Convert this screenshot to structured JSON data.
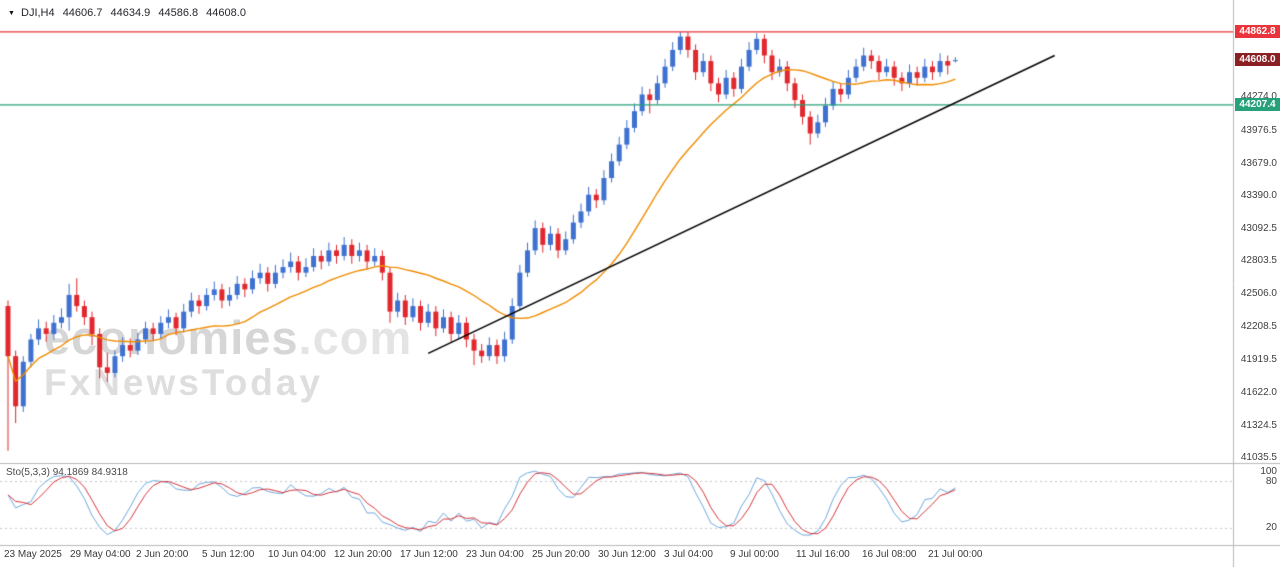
{
  "header": {
    "marker_icon": "▼",
    "symbol": "DJI,H4",
    "open": "44606.7",
    "high": "44634.9",
    "low": "44586.8",
    "close": "44608.0"
  },
  "watermark": {
    "brand": "economies",
    "domain": ".com",
    "subbrand": "FxNewsToday"
  },
  "price_axis": {
    "badges": {
      "resistance": "44862.8",
      "last": "44608.0",
      "support": "44207.4"
    }
  },
  "colors": {
    "up_candle": "#3f72d0",
    "down_candle": "#e0282e",
    "ma": "#f08c00",
    "trendline": "#000000",
    "resistance": "#e8343a",
    "support": "#27a17b",
    "last_price_badge": "#8a1f24",
    "stoch_k": "#6fa8dc",
    "stoch_d": "#d6373d",
    "level_line": "#c6c6c6",
    "border": "#b8b8b8"
  },
  "chart_data": {
    "type": "candlestick",
    "symbol": "DJI",
    "timeframe": "H4",
    "price_range": [
      41000,
      44870
    ],
    "y_tick_labels": [
      "44274.0",
      "43976.5",
      "43679.0",
      "43390.0",
      "43092.5",
      "42803.5",
      "42506.0",
      "42208.5",
      "41919.5",
      "41622.0",
      "41324.5",
      "41035.5"
    ],
    "x_tick_labels": [
      "23 May 2025",
      "29 May 04:00",
      "2 Jun 20:00",
      "5 Jun 12:00",
      "10 Jun 04:00",
      "12 Jun 20:00",
      "17 Jun 12:00",
      "23 Jun 04:00",
      "25 Jun 20:00",
      "30 Jun 12:00",
      "3 Jul 04:00",
      "9 Jul 00:00",
      "11 Jul 16:00",
      "16 Jul 08:00",
      "21 Jul 00:00"
    ],
    "candles": [
      [
        42400,
        42450,
        41100,
        41950
      ],
      [
        41950,
        42000,
        41350,
        41500
      ],
      [
        41500,
        41950,
        41450,
        41900
      ],
      [
        41900,
        42150,
        41850,
        42100
      ],
      [
        42100,
        42280,
        42050,
        42200
      ],
      [
        42200,
        42260,
        42080,
        42150
      ],
      [
        42150,
        42320,
        42100,
        42250
      ],
      [
        42250,
        42380,
        42200,
        42300
      ],
      [
        42300,
        42600,
        42180,
        42500
      ],
      [
        42500,
        42650,
        42350,
        42400
      ],
      [
        42400,
        42450,
        42230,
        42300
      ],
      [
        42300,
        42350,
        42050,
        42150
      ],
      [
        42150,
        42200,
        41750,
        41850
      ],
      [
        41850,
        41980,
        41720,
        41800
      ],
      [
        41800,
        42000,
        41760,
        41950
      ],
      [
        41950,
        42120,
        41900,
        42050
      ],
      [
        42050,
        42110,
        41940,
        42000
      ],
      [
        42000,
        42160,
        41960,
        42100
      ],
      [
        42100,
        42260,
        42060,
        42200
      ],
      [
        42200,
        42250,
        42090,
        42150
      ],
      [
        42150,
        42310,
        42110,
        42250
      ],
      [
        42250,
        42370,
        42200,
        42300
      ],
      [
        42300,
        42340,
        42140,
        42200
      ],
      [
        42200,
        42420,
        42160,
        42350
      ],
      [
        42350,
        42520,
        42300,
        42450
      ],
      [
        42450,
        42500,
        42330,
        42400
      ],
      [
        42400,
        42560,
        42360,
        42500
      ],
      [
        42500,
        42620,
        42450,
        42550
      ],
      [
        42550,
        42600,
        42380,
        42450
      ],
      [
        42450,
        42570,
        42400,
        42500
      ],
      [
        42500,
        42670,
        42460,
        42600
      ],
      [
        42600,
        42650,
        42480,
        42550
      ],
      [
        42550,
        42720,
        42510,
        42650
      ],
      [
        42650,
        42780,
        42600,
        42700
      ],
      [
        42700,
        42750,
        42530,
        42600
      ],
      [
        42600,
        42770,
        42560,
        42700
      ],
      [
        42700,
        42820,
        42650,
        42750
      ],
      [
        42750,
        42880,
        42700,
        42800
      ],
      [
        42800,
        42850,
        42630,
        42700
      ],
      [
        42700,
        42830,
        42660,
        42750
      ],
      [
        42750,
        42920,
        42710,
        42850
      ],
      [
        42850,
        42900,
        42730,
        42800
      ],
      [
        42800,
        42970,
        42760,
        42900
      ],
      [
        42900,
        42950,
        42780,
        42850
      ],
      [
        42850,
        43020,
        42810,
        42950
      ],
      [
        42950,
        43000,
        42780,
        42850
      ],
      [
        42850,
        42970,
        42800,
        42900
      ],
      [
        42900,
        42950,
        42730,
        42800
      ],
      [
        42800,
        42920,
        42760,
        42850
      ],
      [
        42850,
        42900,
        42630,
        42700
      ],
      [
        42700,
        42750,
        42250,
        42350
      ],
      [
        42350,
        42520,
        42300,
        42450
      ],
      [
        42450,
        42500,
        42230,
        42300
      ],
      [
        42300,
        42470,
        42260,
        42400
      ],
      [
        42400,
        42450,
        42180,
        42250
      ],
      [
        42250,
        42420,
        42210,
        42350
      ],
      [
        42350,
        42400,
        42130,
        42200
      ],
      [
        42200,
        42370,
        42160,
        42300
      ],
      [
        42300,
        42350,
        42080,
        42150
      ],
      [
        42150,
        42320,
        42110,
        42250
      ],
      [
        42250,
        42300,
        42030,
        42100
      ],
      [
        42100,
        42150,
        41870,
        42000
      ],
      [
        42000,
        42060,
        41890,
        41950
      ],
      [
        41950,
        42120,
        41910,
        42050
      ],
      [
        42050,
        42100,
        41880,
        41950
      ],
      [
        41950,
        42170,
        41900,
        42100
      ],
      [
        42100,
        42470,
        42060,
        42400
      ],
      [
        42400,
        42770,
        42360,
        42700
      ],
      [
        42700,
        42970,
        42660,
        42900
      ],
      [
        42900,
        43170,
        42860,
        43100
      ],
      [
        43100,
        43150,
        42880,
        42950
      ],
      [
        42950,
        43120,
        42900,
        43050
      ],
      [
        43050,
        43100,
        42830,
        42900
      ],
      [
        42900,
        43070,
        42860,
        43000
      ],
      [
        43000,
        43220,
        42960,
        43150
      ],
      [
        43150,
        43320,
        43100,
        43250
      ],
      [
        43250,
        43470,
        43210,
        43400
      ],
      [
        43400,
        43450,
        43280,
        43350
      ],
      [
        43350,
        43620,
        43310,
        43550
      ],
      [
        43550,
        43770,
        43510,
        43700
      ],
      [
        43700,
        43920,
        43660,
        43850
      ],
      [
        43850,
        44070,
        43810,
        44000
      ],
      [
        44000,
        44220,
        43960,
        44150
      ],
      [
        44150,
        44370,
        44110,
        44300
      ],
      [
        44300,
        44350,
        44130,
        44250
      ],
      [
        44250,
        44470,
        44210,
        44400
      ],
      [
        44400,
        44620,
        44360,
        44550
      ],
      [
        44550,
        44770,
        44510,
        44700
      ],
      [
        44700,
        44862,
        44660,
        44820
      ],
      [
        44820,
        44860,
        44630,
        44700
      ],
      [
        44700,
        44750,
        44430,
        44500
      ],
      [
        44500,
        44670,
        44460,
        44600
      ],
      [
        44600,
        44650,
        44330,
        44400
      ],
      [
        44400,
        44450,
        44230,
        44300
      ],
      [
        44300,
        44520,
        44260,
        44450
      ],
      [
        44450,
        44500,
        44280,
        44350
      ],
      [
        44350,
        44620,
        44310,
        44550
      ],
      [
        44550,
        44770,
        44510,
        44700
      ],
      [
        44700,
        44850,
        44660,
        44800
      ],
      [
        44800,
        44840,
        44580,
        44650
      ],
      [
        44650,
        44700,
        44430,
        44500
      ],
      [
        44500,
        44620,
        44460,
        44550
      ],
      [
        44550,
        44600,
        44330,
        44400
      ],
      [
        44400,
        44450,
        44180,
        44250
      ],
      [
        44250,
        44300,
        44030,
        44100
      ],
      [
        44100,
        44150,
        43850,
        43950
      ],
      [
        43950,
        44120,
        43910,
        44050
      ],
      [
        44050,
        44270,
        44010,
        44200
      ],
      [
        44200,
        44420,
        44160,
        44350
      ],
      [
        44350,
        44400,
        44230,
        44300
      ],
      [
        44300,
        44520,
        44260,
        44450
      ],
      [
        44450,
        44620,
        44410,
        44550
      ],
      [
        44550,
        44720,
        44510,
        44650
      ],
      [
        44650,
        44700,
        44530,
        44600
      ],
      [
        44600,
        44650,
        44430,
        44500
      ],
      [
        44500,
        44620,
        44460,
        44550
      ],
      [
        44550,
        44600,
        44380,
        44450
      ],
      [
        44450,
        44500,
        44330,
        44400
      ],
      [
        44400,
        44570,
        44360,
        44500
      ],
      [
        44500,
        44550,
        44380,
        44450
      ],
      [
        44450,
        44620,
        44410,
        44550
      ],
      [
        44550,
        44600,
        44430,
        44500
      ],
      [
        44500,
        44670,
        44460,
        44600
      ],
      [
        44600,
        44650,
        44480,
        44560
      ],
      [
        44607,
        44635,
        44587,
        44608
      ]
    ],
    "overlays": {
      "ma": {
        "type": "sma",
        "period": 20
      },
      "trendline": {
        "from_index": 55,
        "from_price": 41975,
        "to_index": 137,
        "to_price": 44650
      },
      "resistance": {
        "price": 44862.8
      },
      "support": {
        "price": 44207.4
      }
    },
    "stochastic": {
      "label": "Sto(5,3,3) 94.1869 84.9318",
      "k_value": 94.1869,
      "d_value": 84.9318,
      "k_period": 5,
      "slowing": 3,
      "d_period": 3,
      "range": [
        0,
        100
      ],
      "levels": [
        80,
        20
      ],
      "axis_labels": [
        "100",
        "80",
        "20"
      ]
    }
  }
}
